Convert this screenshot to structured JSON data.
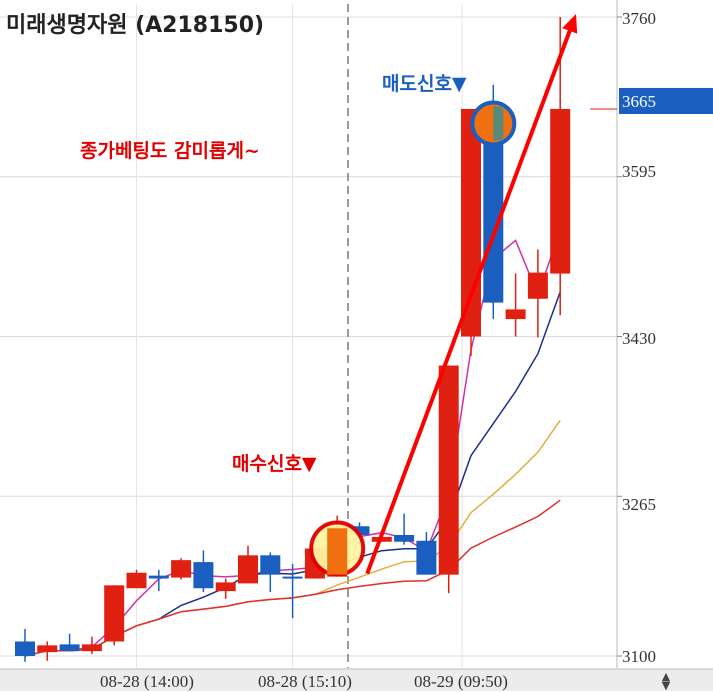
{
  "chart_data": {
    "type": "candlestick",
    "title": "미래생명자원 (A218150)",
    "ylim": [
      3100,
      3800
    ],
    "y_ticks": [
      3760,
      3595,
      3430,
      3265,
      3100
    ],
    "current_price": 3665,
    "x_ticks": [
      "08-28 (14:00)",
      "08-28 (15:10)",
      "08-29 (09:50)"
    ],
    "candles": [
      {
        "o": 3115,
        "h": 3128,
        "l": 3094,
        "c": 3100
      },
      {
        "o": 3104,
        "h": 3115,
        "l": 3095,
        "c": 3111
      },
      {
        "o": 3112,
        "h": 3123,
        "l": 3110,
        "c": 3105
      },
      {
        "o": 3105,
        "h": 3120,
        "l": 3102,
        "c": 3112
      },
      {
        "o": 3115,
        "h": 3173,
        "l": 3111,
        "c": 3173
      },
      {
        "o": 3170,
        "h": 3189,
        "l": 3170,
        "c": 3186
      },
      {
        "o": 3183,
        "h": 3189,
        "l": 3167,
        "c": 3180
      },
      {
        "o": 3181,
        "h": 3201,
        "l": 3179,
        "c": 3199
      },
      {
        "o": 3197,
        "h": 3209,
        "l": 3166,
        "c": 3170
      },
      {
        "o": 3167,
        "h": 3180,
        "l": 3159,
        "c": 3176
      },
      {
        "o": 3175,
        "h": 3214,
        "l": 3175,
        "c": 3204
      },
      {
        "o": 3204,
        "h": 3207,
        "l": 3166,
        "c": 3184
      },
      {
        "o": 3182,
        "h": 3195,
        "l": 3139,
        "c": 3180
      },
      {
        "o": 3180,
        "h": 3213,
        "l": 3180,
        "c": 3211
      },
      {
        "o": 3182,
        "h": 3245,
        "l": 3182,
        "c": 3234
      },
      {
        "o": 3234,
        "h": 3238,
        "l": 3222,
        "c": 3225
      },
      {
        "o": 3218,
        "h": 3230,
        "l": 3218,
        "c": 3223
      },
      {
        "o": 3225,
        "h": 3247,
        "l": 3215,
        "c": 3218
      },
      {
        "o": 3219,
        "h": 3228,
        "l": 3185,
        "c": 3184
      },
      {
        "o": 3184,
        "h": 3400,
        "l": 3165,
        "c": 3400
      },
      {
        "o": 3430,
        "h": 3665,
        "l": 3410,
        "c": 3665
      },
      {
        "o": 3665,
        "h": 3690,
        "l": 3448,
        "c": 3465
      },
      {
        "o": 3448,
        "h": 3495,
        "l": 3430,
        "c": 3458
      },
      {
        "o": 3469,
        "h": 3520,
        "l": 3429,
        "c": 3496
      },
      {
        "o": 3495,
        "h": 3760,
        "l": 3452,
        "c": 3665
      }
    ],
    "annotations": {
      "buy_signal": "매수신호▼",
      "sell_signal": "매도신호▼",
      "note": "종가베팅도 감미롭게~"
    },
    "colors": {
      "up": "#e02010",
      "down": "#1a5fc0",
      "arrow": "#ff0000",
      "current_price_box": "#1a5fc0",
      "ma_magenta": "#cc33aa",
      "ma_navy": "#1a2f8a",
      "ma_gold": "#e0b040",
      "ma_gray": "#aaaaaa",
      "ma_red": "#e03030"
    }
  }
}
